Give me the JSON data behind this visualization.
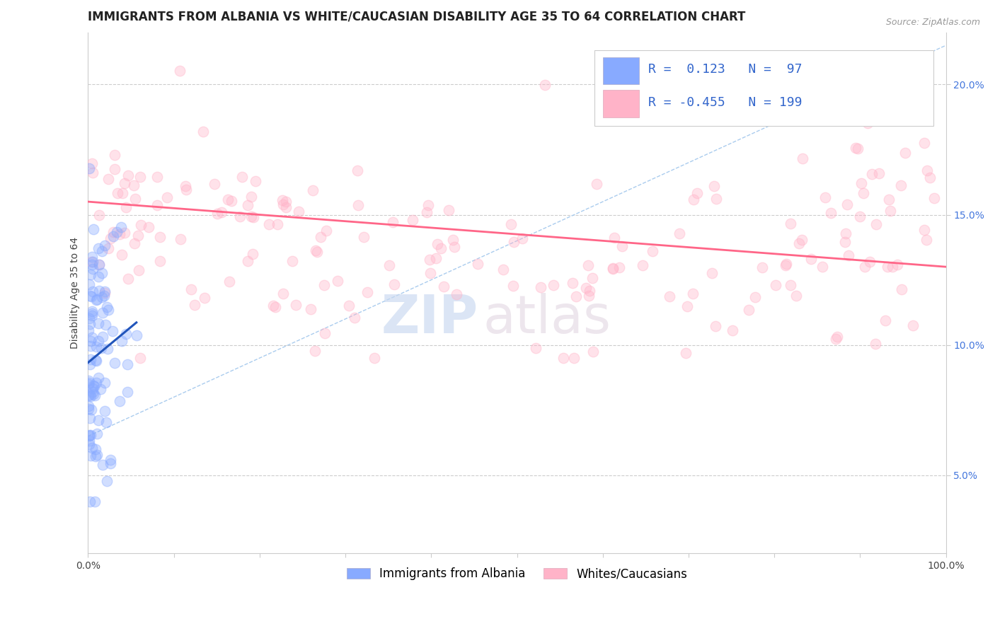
{
  "title": "IMMIGRANTS FROM ALBANIA VS WHITE/CAUCASIAN DISABILITY AGE 35 TO 64 CORRELATION CHART",
  "source": "Source: ZipAtlas.com",
  "ylabel": "Disability Age 35 to 64",
  "xlim": [
    0.0,
    1.0
  ],
  "ylim": [
    0.02,
    0.22
  ],
  "xticks": [
    0.0,
    0.1,
    0.2,
    0.3,
    0.4,
    0.5,
    0.6,
    0.7,
    0.8,
    0.9,
    1.0
  ],
  "xtick_labels_show": [
    "0.0%",
    "",
    "",
    "",
    "",
    "",
    "",
    "",
    "",
    "",
    "100.0%"
  ],
  "yticks": [
    0.05,
    0.1,
    0.15,
    0.2
  ],
  "ytick_labels": [
    "5.0%",
    "10.0%",
    "15.0%",
    "20.0%"
  ],
  "blue_color": "#88AAFF",
  "pink_color": "#FFB3C8",
  "blue_marker_color": "#88AAFF",
  "pink_marker_color": "#FFB3C8",
  "blue_trend_color": "#2255BB",
  "pink_trend_color": "#FF6688",
  "diag_color": "#AACCEE",
  "grid_color": "#CCCCCC",
  "legend_R1": "0.123",
  "legend_N1": "97",
  "legend_R2": "-0.455",
  "legend_N2": "199",
  "legend_label1": "Immigrants from Albania",
  "legend_label2": "Whites/Caucasians",
  "watermark_zip": "ZIP",
  "watermark_atlas": "atlas",
  "blue_seed": 42,
  "pink_seed": 99,
  "blue_n": 97,
  "pink_n": 199,
  "title_fontsize": 12,
  "axis_label_fontsize": 10,
  "tick_fontsize": 10,
  "legend_fontsize": 12,
  "marker_size": 110,
  "marker_alpha": 0.38,
  "marker_lw": 1.0
}
